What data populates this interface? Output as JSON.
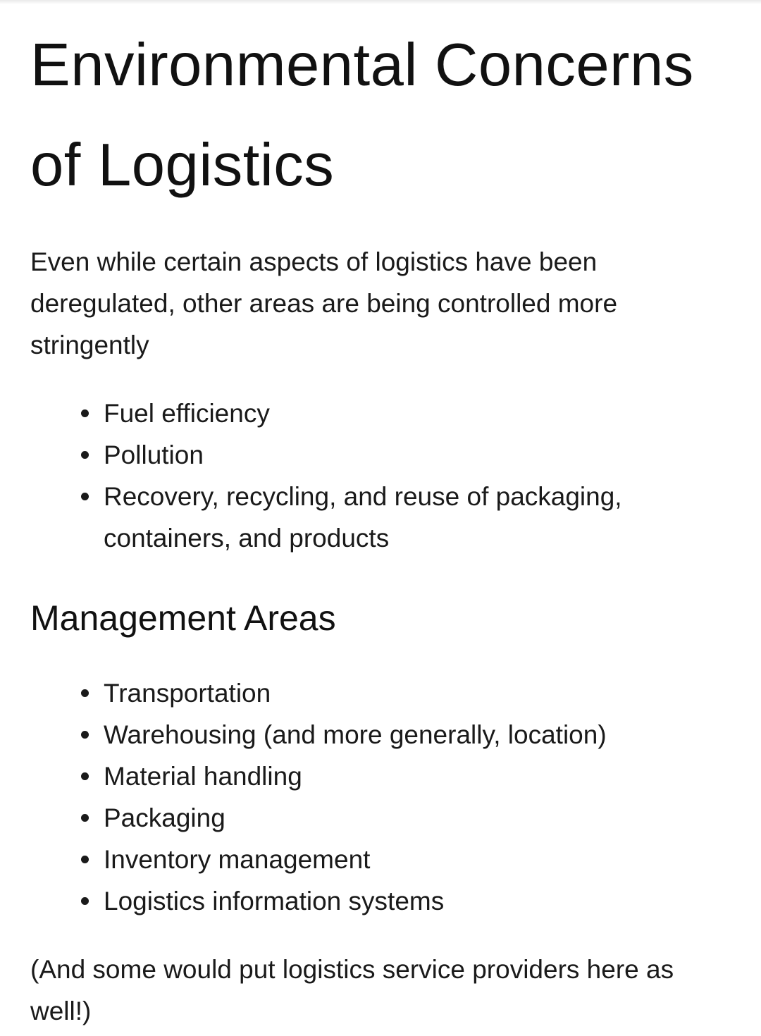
{
  "document": {
    "title": "Environmental Concerns of Logistics",
    "intro": "Even while certain aspects of logistics have been deregulated, other areas are being controlled more stringently",
    "concerns": [
      "Fuel efficiency",
      "Pollution",
      "Recovery, recycling, and reuse of packaging, containers, and products"
    ],
    "section_heading": "Management Areas",
    "management_areas": [
      "Transportation",
      "Warehousing (and more generally, location)",
      "Material handling",
      "Packaging",
      "Inventory management",
      "Logistics information systems"
    ],
    "footnote": "(And some would put logistics service providers here as well!)"
  }
}
